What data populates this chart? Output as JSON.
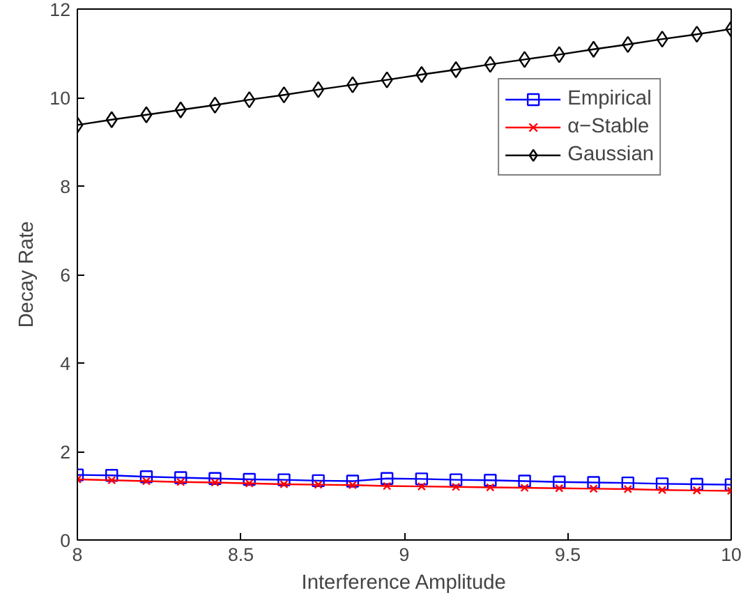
{
  "chart_data": {
    "type": "line",
    "xlabel": "Interference Amplitude",
    "ylabel": "Decay Rate",
    "x": [
      8,
      8.105,
      8.211,
      8.316,
      8.421,
      8.526,
      8.632,
      8.737,
      8.842,
      8.947,
      9.053,
      9.158,
      9.263,
      9.368,
      9.474,
      9.579,
      9.684,
      9.789,
      9.895,
      10
    ],
    "series": [
      {
        "name": "Empirical",
        "color": "#0000ff",
        "marker": "square",
        "values": [
          1.47,
          1.46,
          1.43,
          1.41,
          1.39,
          1.37,
          1.36,
          1.34,
          1.33,
          1.39,
          1.38,
          1.36,
          1.35,
          1.33,
          1.31,
          1.3,
          1.29,
          1.27,
          1.26,
          1.25
        ]
      },
      {
        "name": "α−Stable",
        "color": "#ff0000",
        "marker": "cross",
        "values": [
          1.37,
          1.35,
          1.33,
          1.31,
          1.3,
          1.28,
          1.26,
          1.25,
          1.24,
          1.22,
          1.21,
          1.2,
          1.19,
          1.18,
          1.17,
          1.16,
          1.15,
          1.13,
          1.12,
          1.11
        ]
      },
      {
        "name": "Gaussian",
        "color": "#000000",
        "marker": "diamond",
        "values": [
          9.38,
          9.5,
          9.61,
          9.72,
          9.83,
          9.95,
          10.06,
          10.18,
          10.29,
          10.4,
          10.52,
          10.63,
          10.75,
          10.86,
          10.97,
          11.09,
          11.2,
          11.32,
          11.43,
          11.55
        ]
      }
    ],
    "xlim": [
      8,
      10
    ],
    "ylim": [
      0,
      12
    ],
    "xticks": [
      8,
      8.5,
      9,
      9.5,
      10
    ],
    "yticks": [
      0,
      2,
      4,
      6,
      8,
      10,
      12
    ],
    "grid": false,
    "legend": "top right",
    "line_style": "solid"
  }
}
